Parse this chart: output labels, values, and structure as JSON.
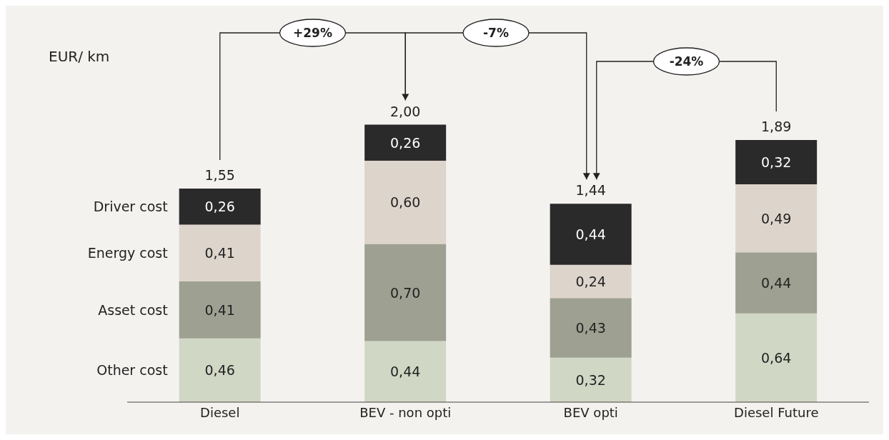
{
  "chart_data": {
    "type": "bar",
    "stacked": true,
    "ylabel": "EUR/ km",
    "legend": "left",
    "categories": [
      "Diesel",
      "BEV - non opti",
      "BEV opti",
      "Diesel Future"
    ],
    "series": [
      {
        "name": "Other cost",
        "color": "#d1d7c5",
        "values": [
          0.46,
          0.44,
          0.32,
          0.64
        ],
        "value_labels": [
          "0,46",
          "0,44",
          "0,32",
          "0,64"
        ]
      },
      {
        "name": "Asset cost",
        "color": "#9ea091",
        "values": [
          0.41,
          0.7,
          0.43,
          0.44
        ],
        "value_labels": [
          "0,41",
          "0,70",
          "0,43",
          "0,44"
        ]
      },
      {
        "name": "Energy cost",
        "color": "#ddd4cb",
        "values": [
          0.41,
          0.6,
          0.24,
          0.49
        ],
        "value_labels": [
          "0,41",
          "0,60",
          "0,24",
          "0,49"
        ]
      },
      {
        "name": "Driver cost",
        "color": "#2a2a2a",
        "values": [
          0.26,
          0.26,
          0.44,
          0.32
        ],
        "value_labels": [
          "0,26",
          "0,26",
          "0,44",
          "0,32"
        ]
      }
    ],
    "totals": [
      "1,55",
      "2,00",
      "1,44",
      "1,89"
    ],
    "annotations": [
      "+29%",
      "-7%",
      "-24%"
    ]
  }
}
